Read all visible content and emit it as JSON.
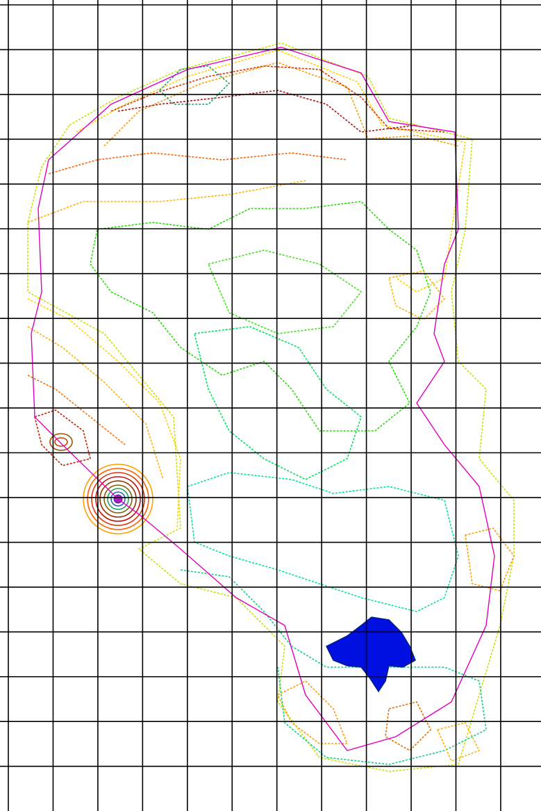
{
  "map": {
    "grid": true
  }
}
